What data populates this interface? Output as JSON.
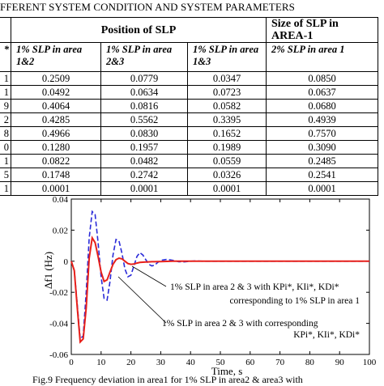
{
  "caption": "FFERENT SYSTEM CONDITION AND SYSTEM PARAMETERS",
  "table": {
    "header": {
      "position": "Position of SLP",
      "size": "Size of SLP in AREA-1"
    },
    "subheaders": [
      "1%  SLP in area 1&2",
      "1%  SLP in area 2&3",
      "1%  SLP in area 1&3",
      "2% SLP in area 1"
    ],
    "rows": [
      {
        "k": "1",
        "c1": "0.2509",
        "c2": "0.0779",
        "c3": "0.0347",
        "c4": "0.0850"
      },
      {
        "k": "1",
        "c1": "0.0492",
        "c2": "0.0634",
        "c3": "0.0723",
        "c4": "0.0637"
      },
      {
        "k": "9",
        "c1": "0.4064",
        "c2": "0.0816",
        "c3": "0.0582",
        "c4": "0.0680"
      },
      {
        "k": "2",
        "c1": "0.4285",
        "c2": "0.5562",
        "c3": "0.3395",
        "c4": "0.4939"
      },
      {
        "k": "8",
        "c1": "0.4966",
        "c2": "0.0830",
        "c3": "0.1652",
        "c4": "0.7570"
      },
      {
        "k": "0",
        "c1": "0.1280",
        "c2": "0.1957",
        "c3": "0.1989",
        "c4": "0.3090"
      },
      {
        "k": "1",
        "c1": "0.0822",
        "c2": "0.0482",
        "c3": "0.0559",
        "c4": "0.2485"
      },
      {
        "k": "5",
        "c1": "0.1748",
        "c2": "0.2742",
        "c3": "0.0326",
        "c4": "0.2541"
      },
      {
        "k": "1",
        "c1": "0.0001",
        "c2": "0.0001",
        "c3": "0.0001",
        "c4": "0.0001"
      }
    ]
  },
  "chart_data": {
    "type": "line",
    "xlabel": "Time, s",
    "ylabel": "Δf1 (Hz)",
    "xlim": [
      0,
      100
    ],
    "ylim": [
      -0.06,
      0.04
    ],
    "xticks": [
      "0",
      "10",
      "20",
      "30",
      "40",
      "50",
      "60",
      "70",
      "80",
      "90",
      "100"
    ],
    "yticks": [
      "0.04",
      "0.02",
      "0",
      "-0.02",
      "-0.04",
      "-0.06"
    ],
    "annotations": [
      "1% SLP in area 2 & 3 with KPi*, KIi*, KDi*",
      "corresponding to 1% SLP in area 1",
      "1% SLP in area 2 & 3 with corresponding",
      "KPi*, KIi*, KDi*"
    ],
    "series": [
      {
        "color": "#2a2ad8",
        "style": "dashed",
        "x": [
          0,
          1,
          2,
          3,
          4,
          5,
          6,
          7,
          8,
          9,
          10,
          11,
          12,
          13,
          14,
          15,
          16,
          17,
          18,
          19,
          20,
          21,
          22,
          23,
          24,
          25,
          26,
          27,
          28,
          29,
          30,
          32,
          34,
          36,
          38,
          40,
          42,
          44,
          46,
          48,
          50,
          55,
          60,
          70,
          80,
          90,
          100
        ],
        "y": [
          0,
          -0.006,
          -0.028,
          -0.05,
          -0.048,
          -0.02,
          0.015,
          0.032,
          0.03,
          0.012,
          -0.01,
          -0.024,
          -0.025,
          -0.013,
          0.004,
          0.014,
          0.013,
          0.005,
          -0.005,
          -0.01,
          -0.009,
          -0.003,
          0.003,
          0.0055,
          0.004,
          0.001,
          -0.002,
          -0.003,
          -0.0025,
          -0.0008,
          0.0005,
          0.0012,
          0.0006,
          -0.0003,
          -0.0004,
          0,
          0.0002,
          0,
          0,
          0,
          0,
          0,
          0,
          0,
          0,
          0,
          0
        ]
      },
      {
        "color": "#e8201a",
        "style": "solid",
        "x": [
          0,
          1,
          2,
          3,
          4,
          5,
          6,
          7,
          8,
          9,
          10,
          11,
          12,
          13,
          14,
          15,
          16,
          17,
          18,
          19,
          20,
          21,
          22,
          23,
          24,
          25,
          26,
          27,
          28,
          29,
          30,
          32,
          34,
          36,
          38,
          40,
          42,
          44,
          46,
          48,
          50,
          55,
          60,
          70,
          80,
          90,
          100
        ],
        "y": [
          0,
          -0.006,
          -0.03,
          -0.052,
          -0.05,
          -0.03,
          0.002,
          0.015,
          0.012,
          0.003,
          -0.007,
          -0.013,
          -0.012,
          -0.007,
          -0.002,
          0.001,
          0.002,
          0.0015,
          0,
          -0.0015,
          -0.002,
          -0.0018,
          -0.0012,
          -0.0008,
          -0.0006,
          -0.0005,
          -0.0004,
          -0.0003,
          -0.0003,
          -0.0002,
          -0.0002,
          -0.0001,
          0,
          0,
          0,
          0,
          0,
          0,
          0,
          0,
          0,
          0,
          0,
          0,
          0,
          0,
          0
        ]
      }
    ]
  },
  "figure_caption": "Fig.9 Frequency deviation in area1 for 1% SLP in area2 & area3 with"
}
